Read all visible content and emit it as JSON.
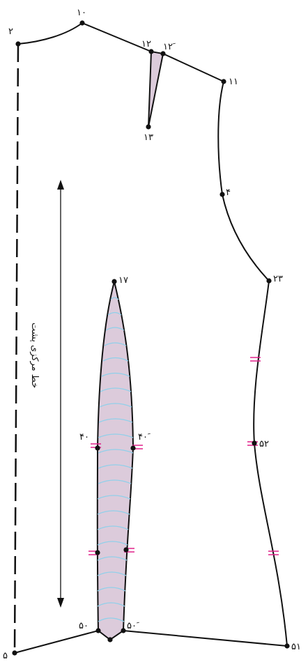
{
  "caption": "خط مرکزی پشت",
  "point_labels": {
    "p2": "۲",
    "p10": "۱۰",
    "p12": "۱۲",
    "p12b": "۱۲ َ",
    "p11": "۱۱",
    "p13": "۱۳",
    "p4": "۴",
    "p23": "۲۳",
    "p17": "۱۷",
    "p40": "۴۰",
    "p40b": "۴۰ َ",
    "p52": "۵۲",
    "p50": "۵۰",
    "p50b": "۵۰ َ",
    "p51": "۵۱",
    "p5": "۵"
  },
  "colors": {
    "outline": "#111111",
    "dart_fill": "#dccbdb",
    "dart_lines": "#8fd0ea",
    "notch": "#e0208a"
  }
}
